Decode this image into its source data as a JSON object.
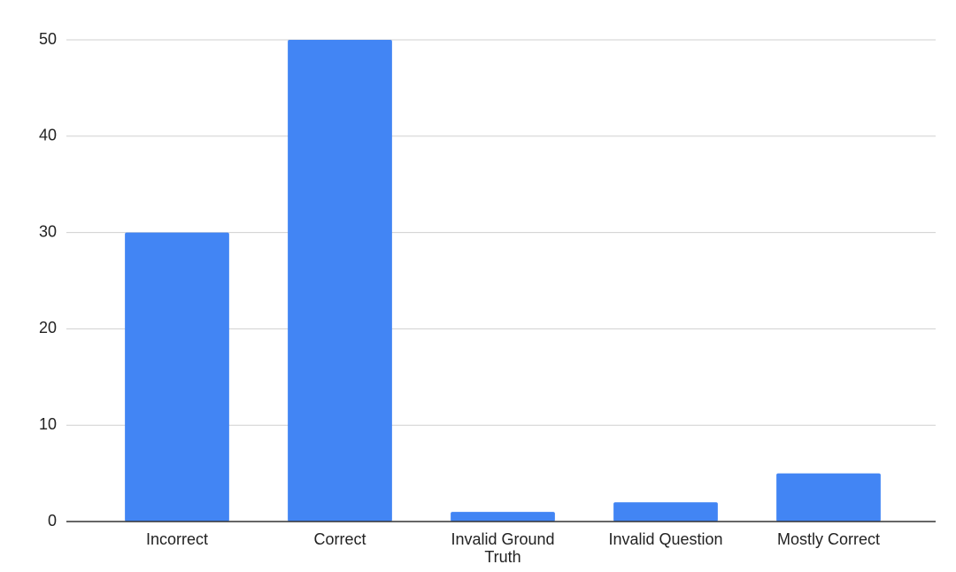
{
  "chart_data": {
    "type": "bar",
    "categories": [
      "Incorrect",
      "Correct",
      "Invalid Ground Truth",
      "Invalid Question",
      "Mostly Correct"
    ],
    "values": [
      30,
      50,
      1,
      2,
      5
    ],
    "color": "#4285f4",
    "ylim": [
      0,
      50
    ],
    "yticks": [
      0,
      10,
      20,
      30,
      40,
      50
    ],
    "grid": true
  }
}
